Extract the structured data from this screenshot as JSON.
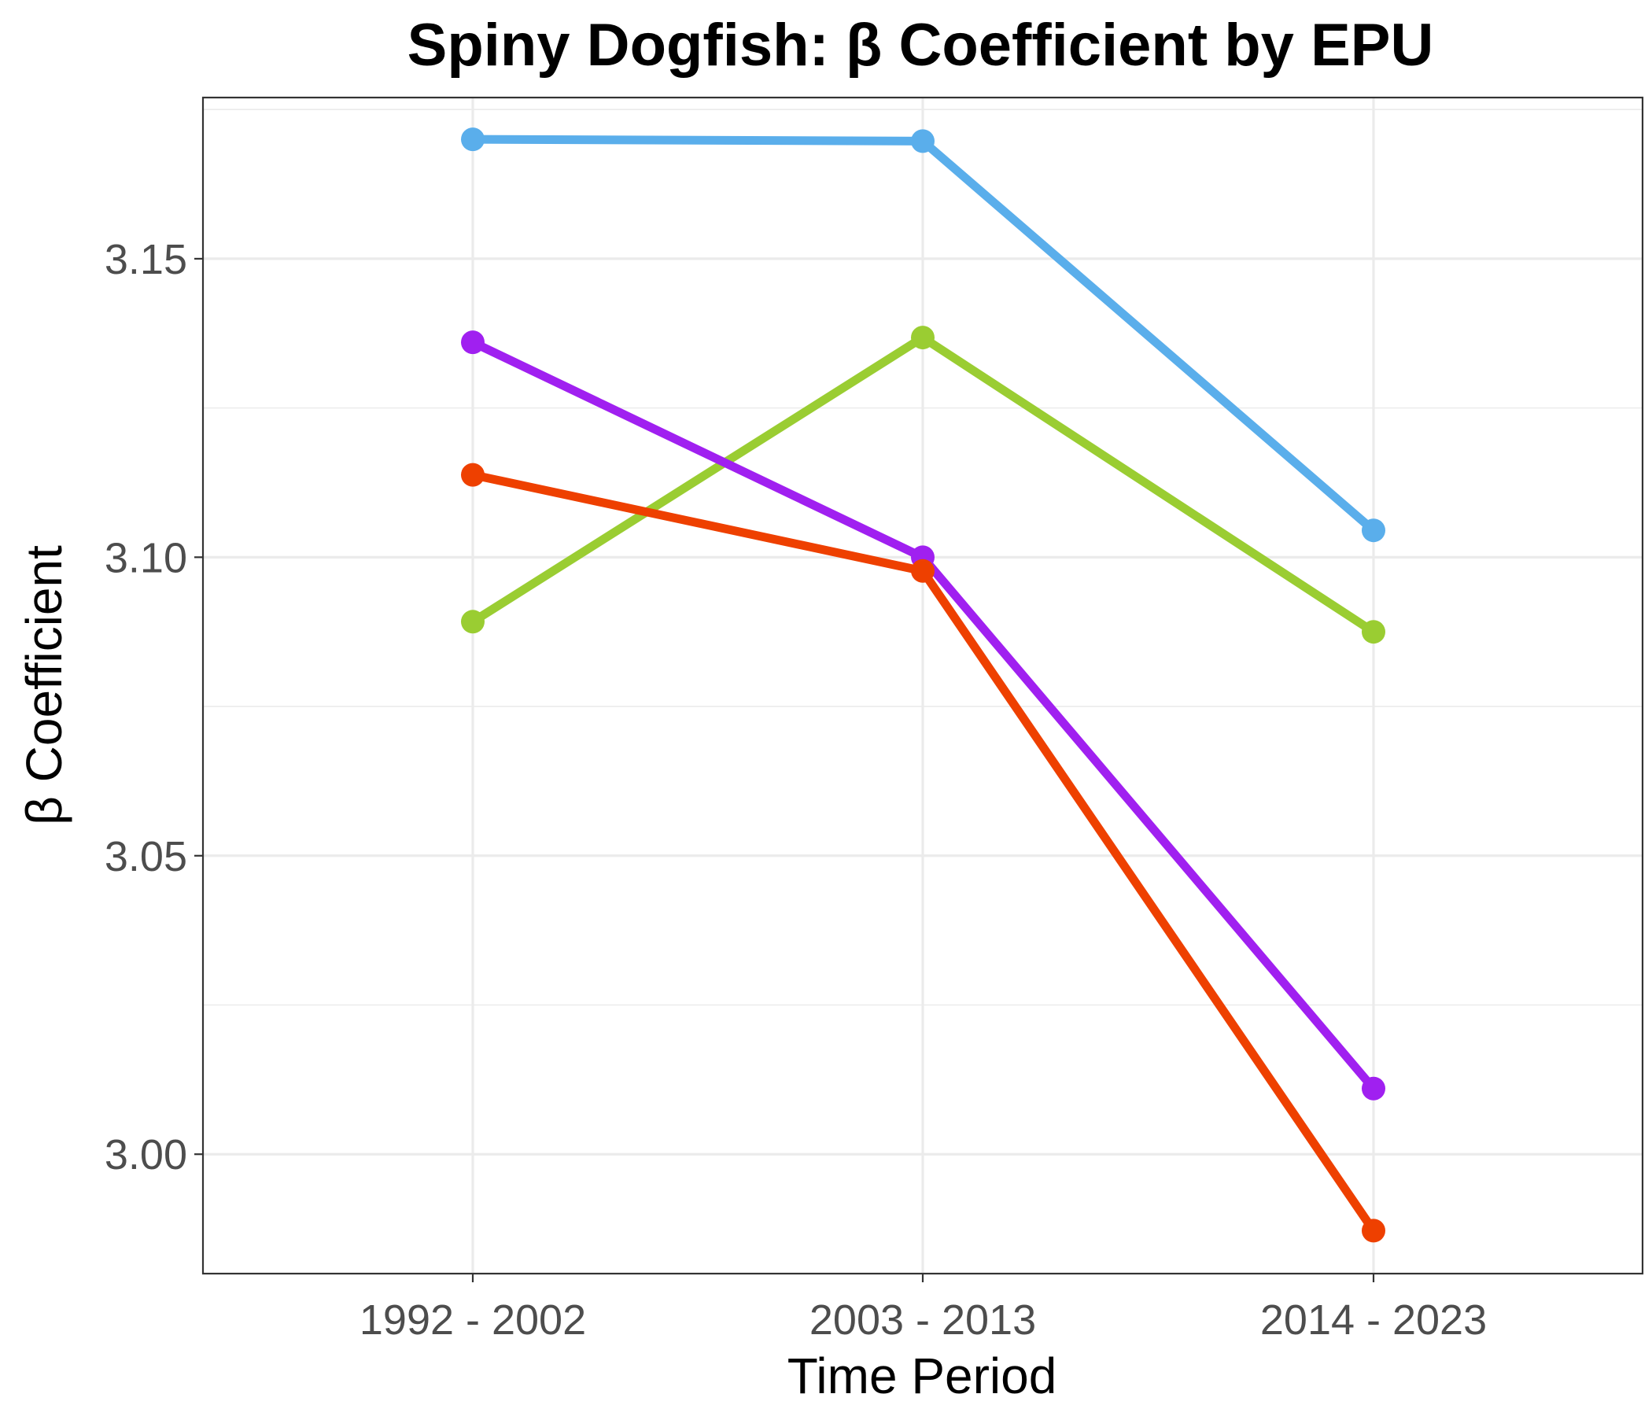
{
  "chart_data": {
    "type": "line",
    "title": "Spiny Dogfish: β Coefficient by EPU",
    "xlabel": "Time Period",
    "ylabel": "β Coefficient",
    "categories": [
      "1992 - 2002",
      "2003 - 2013",
      "2014 - 2023"
    ],
    "ylim": [
      2.98,
      3.177
    ],
    "yticks": [
      3.0,
      3.05,
      3.1,
      3.15
    ],
    "ytick_labels": [
      "3.00",
      "3.05",
      "3.10",
      "3.15"
    ],
    "grid": true,
    "legend": "none",
    "series": [
      {
        "color": "#5aaeeb",
        "values": [
          3.17,
          3.1697,
          3.1045
        ]
      },
      {
        "color": "#9acd32",
        "values": [
          3.0892,
          3.1368,
          3.0875
        ]
      },
      {
        "color": "#a020f0",
        "values": [
          3.136,
          3.1,
          3.011
        ]
      },
      {
        "color": "#ee4000",
        "values": [
          3.1138,
          3.0977,
          2.9872
        ]
      }
    ]
  }
}
